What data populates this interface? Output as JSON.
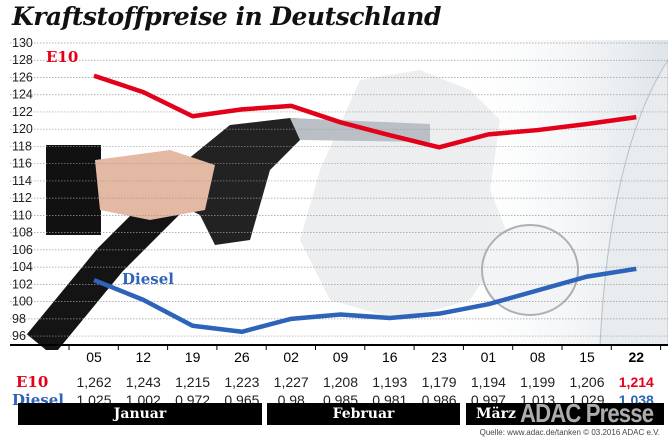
{
  "chart_data": {
    "type": "line",
    "title": "Kraftstoffpreise in Deutschland",
    "xlabel": "",
    "ylabel": "",
    "ylim": [
      96,
      130
    ],
    "yticks": [
      130,
      128,
      126,
      124,
      122,
      120,
      118,
      116,
      114,
      112,
      110,
      108,
      106,
      104,
      102,
      100,
      98,
      96
    ],
    "grid": true,
    "categories": [
      "05",
      "12",
      "19",
      "26",
      "02",
      "09",
      "16",
      "23",
      "01",
      "08",
      "15",
      "22"
    ],
    "months": [
      {
        "label": "Januar",
        "weeks": 4
      },
      {
        "label": "Februar",
        "weeks": 4
      },
      {
        "label": "März",
        "weeks": 4
      }
    ],
    "series": [
      {
        "name": "E10",
        "color": "#e3001b",
        "values": [
          126.2,
          124.3,
          121.5,
          122.3,
          122.7,
          120.8,
          119.3,
          117.9,
          119.4,
          119.9,
          120.6,
          121.4
        ],
        "labels": [
          "1,262",
          "1,243",
          "1,215",
          "1,223",
          "1,227",
          "1,208",
          "1,193",
          "1,179",
          "1,194",
          "1,199",
          "1,206",
          "1,214"
        ]
      },
      {
        "name": "Diesel",
        "color": "#2d63b8",
        "values": [
          102.5,
          100.2,
          97.2,
          96.5,
          98.0,
          98.5,
          98.1,
          98.6,
          99.7,
          101.3,
          102.9,
          103.8
        ],
        "labels": [
          "1,025",
          "1,002",
          "0,972",
          "0,965",
          "0,98",
          "0,985",
          "0,981",
          "0,986",
          "0,997",
          "1,013",
          "1,029",
          "1,038"
        ]
      }
    ],
    "source": "Quelle: www.adac.de/tanken   © 03.2016  ADAC e.V.",
    "watermark": "ADAC Presse"
  }
}
